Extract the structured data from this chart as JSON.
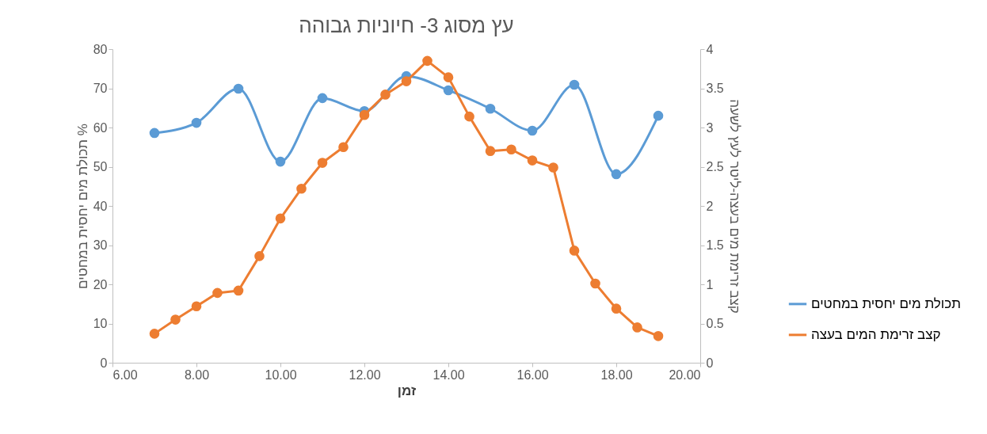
{
  "chart_data": {
    "type": "line",
    "title": "עץ מסוג 3- חיוניות גבוהה",
    "xlabel": "זמן",
    "ylabel": "תכולת מים יחסית במחטים %",
    "y2label": "קצב זרימת מים בעצה-ליטר לעץ לשעה",
    "series": [
      {
        "name": "תכולת מים יחסית במחטים",
        "color": "#5b9bd5",
        "x": [
          7,
          8,
          9,
          10,
          11,
          12,
          13,
          14,
          15,
          16,
          17,
          18,
          19
        ],
        "values": [
          58.6,
          61.2,
          69.9,
          51.3,
          67.5,
          64.2,
          73.1,
          69.5,
          64.8,
          59.2,
          70.9,
          48.1,
          63.0
        ]
      },
      {
        "name": "קצב זרימת המים בעצה",
        "color": "#ed7d31",
        "axis": "y2",
        "x": [
          7,
          7.5,
          8,
          8.5,
          9,
          9.5,
          10,
          10.5,
          11,
          11.5,
          12,
          12.5,
          13,
          13.5,
          14,
          14.5,
          15,
          15.5,
          16,
          16.5,
          17,
          17.5,
          18,
          18.5,
          19
        ],
        "values": [
          0.37,
          0.55,
          0.72,
          0.89,
          0.92,
          1.36,
          1.84,
          2.22,
          2.55,
          2.75,
          3.16,
          3.42,
          3.59,
          3.85,
          3.64,
          3.14,
          2.7,
          2.72,
          2.58,
          2.49,
          1.43,
          1.01,
          0.69,
          0.45,
          0.34
        ]
      }
    ],
    "xlim": [
      6,
      20
    ],
    "xticks": [
      {
        "value": 6,
        "label": "6.00"
      },
      {
        "value": 8,
        "label": "8.00"
      },
      {
        "value": 10,
        "label": "10.00"
      },
      {
        "value": 12,
        "label": "12.00"
      },
      {
        "value": 14,
        "label": "14.00"
      },
      {
        "value": 16,
        "label": "16.00"
      },
      {
        "value": 18,
        "label": "18.00"
      },
      {
        "value": 20,
        "label": "20.00"
      }
    ],
    "ylim": [
      0,
      80
    ],
    "yticks": [
      0,
      10,
      20,
      30,
      40,
      50,
      60,
      70,
      80
    ],
    "y2lim": [
      0,
      4
    ],
    "y2ticks": [
      0,
      0.5,
      1,
      1.5,
      2,
      2.5,
      3,
      3.5,
      4
    ],
    "marker": "circle",
    "legend": "right"
  }
}
